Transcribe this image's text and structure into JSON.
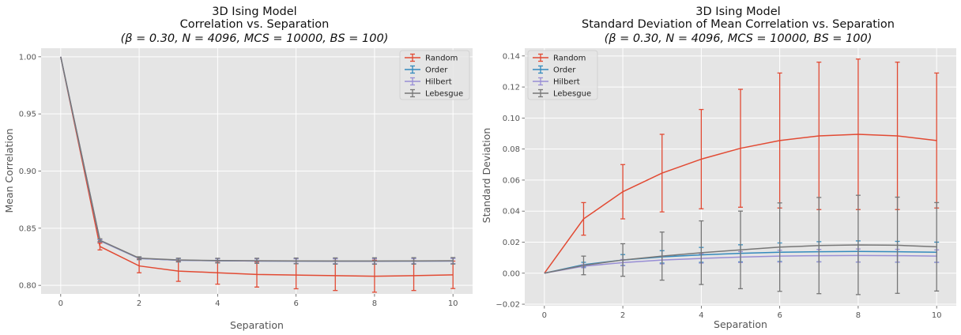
{
  "chart_data": [
    {
      "type": "line",
      "title_lines": [
        "3D Ising Model",
        "Correlation vs. Separation",
        "(β = 0.30, N = 4096, MCS = 10000, BS = 100)"
      ],
      "xlabel": "Separation",
      "ylabel": "Mean Correlation",
      "x_ticks": [
        "0",
        "2",
        "4",
        "6",
        "8",
        "10"
      ],
      "y_ticks": [
        "0.80",
        "0.85",
        "0.90",
        "0.95",
        "1.00"
      ],
      "xlim": [
        -0.5,
        10.5
      ],
      "ylim": [
        0.7925,
        1.0075
      ],
      "grid": true,
      "legend_position": "top-right",
      "x": [
        0,
        1,
        2,
        3,
        4,
        5,
        6,
        7,
        8,
        9,
        10
      ],
      "series": [
        {
          "name": "Random",
          "color": "#E24A33",
          "values": [
            1.0,
            0.834,
            0.817,
            0.8125,
            0.811,
            0.8095,
            0.809,
            0.8085,
            0.808,
            0.8085,
            0.8092
          ],
          "errors": [
            0,
            0.003,
            0.006,
            0.009,
            0.01,
            0.011,
            0.012,
            0.013,
            0.014,
            0.013,
            0.012
          ]
        },
        {
          "name": "Order",
          "color": "#348ABD",
          "values": [
            1.0,
            0.839,
            0.8235,
            0.822,
            0.8215,
            0.8213,
            0.8212,
            0.8211,
            0.8211,
            0.8212,
            0.8213
          ],
          "errors": [
            0,
            0.001,
            0.001,
            0.0015,
            0.0018,
            0.002,
            0.0022,
            0.0024,
            0.0025,
            0.0025,
            0.0025
          ]
        },
        {
          "name": "Hilbert",
          "color": "#988ED5",
          "values": [
            1.0,
            0.839,
            0.8235,
            0.822,
            0.8215,
            0.8213,
            0.8212,
            0.8211,
            0.8211,
            0.8212,
            0.8213
          ],
          "errors": [
            0,
            0.001,
            0.001,
            0.0015,
            0.0017,
            0.0019,
            0.002,
            0.0021,
            0.0022,
            0.0022,
            0.0022
          ]
        },
        {
          "name": "Lebesgue",
          "color": "#777777",
          "values": [
            1.0,
            0.8395,
            0.8238,
            0.8222,
            0.8217,
            0.8215,
            0.8214,
            0.8213,
            0.8213,
            0.8214,
            0.8215
          ],
          "errors": [
            0,
            0.0012,
            0.0012,
            0.0016,
            0.002,
            0.0022,
            0.0025,
            0.0027,
            0.0028,
            0.0028,
            0.0028
          ]
        }
      ]
    },
    {
      "type": "line",
      "title_lines": [
        "3D Ising Model",
        "Standard Deviation of  Mean Correlation vs. Separation",
        "(β = 0.30, N = 4096, MCS = 10000, BS = 100)"
      ],
      "xlabel": "Separation",
      "ylabel": "Standard Deviation",
      "x_ticks": [
        "0",
        "2",
        "4",
        "6",
        "8",
        "10"
      ],
      "y_ticks": [
        "−0.02",
        "0.00",
        "0.02",
        "0.04",
        "0.06",
        "0.08",
        "0.10",
        "0.12",
        "0.14"
      ],
      "xlim": [
        -0.5,
        10.5
      ],
      "ylim": [
        -0.021,
        0.145
      ],
      "grid": true,
      "legend_position": "top-left",
      "x": [
        0,
        1,
        2,
        3,
        4,
        5,
        6,
        7,
        8,
        9,
        10
      ],
      "series": [
        {
          "name": "Random",
          "color": "#E24A33",
          "values": [
            0.0,
            0.035,
            0.0525,
            0.0645,
            0.0735,
            0.0805,
            0.0855,
            0.0885,
            0.0895,
            0.0885,
            0.0855
          ],
          "errors": [
            0,
            0.0105,
            0.0175,
            0.025,
            0.032,
            0.038,
            0.0435,
            0.0475,
            0.0485,
            0.0475,
            0.0435
          ]
        },
        {
          "name": "Order",
          "color": "#348ABD",
          "values": [
            0.0,
            0.0055,
            0.0085,
            0.0105,
            0.0118,
            0.0128,
            0.0135,
            0.0138,
            0.014,
            0.0138,
            0.0135
          ],
          "errors": [
            0,
            0.0015,
            0.0035,
            0.004,
            0.0048,
            0.0055,
            0.006,
            0.0065,
            0.0068,
            0.0067,
            0.0065
          ]
        },
        {
          "name": "Hilbert",
          "color": "#988ED5",
          "values": [
            0.0,
            0.0045,
            0.0068,
            0.0085,
            0.0095,
            0.0104,
            0.011,
            0.0113,
            0.0114,
            0.0113,
            0.011
          ],
          "errors": [
            0,
            0.001,
            0.002,
            0.0025,
            0.003,
            0.0035,
            0.0038,
            0.004,
            0.0042,
            0.0041,
            0.004
          ]
        },
        {
          "name": "Lebesgue",
          "color": "#777777",
          "values": [
            0.0,
            0.005,
            0.0085,
            0.011,
            0.0132,
            0.015,
            0.0168,
            0.0178,
            0.0182,
            0.018,
            0.017
          ],
          "errors": [
            0,
            0.006,
            0.0105,
            0.0155,
            0.0205,
            0.025,
            0.0285,
            0.031,
            0.032,
            0.031,
            0.0285
          ]
        }
      ]
    }
  ]
}
